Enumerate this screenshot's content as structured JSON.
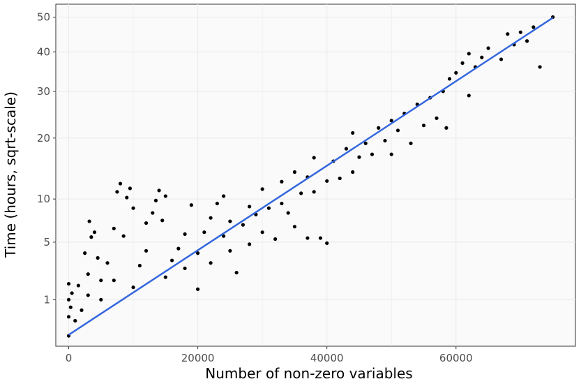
{
  "chart_data": {
    "type": "scatter",
    "title": "",
    "xlabel": "Number of non-zero variables",
    "ylabel": "Time (hours, sqrt-scale)",
    "x_scale": "linear",
    "y_scale": "sqrt",
    "xlim": [
      -2000,
      78500
    ],
    "ylim": [
      0,
      54
    ],
    "x_ticks": [
      {
        "value": 0,
        "label": "0"
      },
      {
        "value": 20000,
        "label": "20000"
      },
      {
        "value": 40000,
        "label": "40000"
      },
      {
        "value": 60000,
        "label": "60000"
      }
    ],
    "y_ticks": [
      {
        "value": 1,
        "label": "1"
      },
      {
        "value": 5,
        "label": "5"
      },
      {
        "value": 10,
        "label": "10"
      },
      {
        "value": 20,
        "label": "20"
      },
      {
        "value": 30,
        "label": "30"
      },
      {
        "value": 40,
        "label": "40"
      },
      {
        "value": 50,
        "label": "50"
      }
    ],
    "grid": true,
    "legend": "none",
    "colors": {
      "panel_background": "#fafafa",
      "grid": "#ebebeb",
      "points": "#000000",
      "trend_line": "#3366dd",
      "panel_border": "#333333"
    },
    "trend_line": {
      "x": [
        0,
        75000
      ],
      "y": [
        0.06,
        49.8
      ]
    },
    "series": [
      {
        "values": [
          [
            0,
            0.05
          ],
          [
            0,
            0.4
          ],
          [
            0,
            1.0
          ],
          [
            0,
            1.8
          ],
          [
            300,
            0.7
          ],
          [
            500,
            1.3
          ],
          [
            1000,
            0.3
          ],
          [
            1500,
            1.7
          ],
          [
            2000,
            0.6
          ],
          [
            3000,
            1.2
          ],
          [
            3000,
            2.4
          ],
          [
            2500,
            4.0
          ],
          [
            3500,
            5.5
          ],
          [
            4000,
            6.0
          ],
          [
            3200,
            7.2
          ],
          [
            4500,
            3.6
          ],
          [
            5000,
            1.0
          ],
          [
            5000,
            2.0
          ],
          [
            6000,
            3.2
          ],
          [
            7000,
            2.0
          ],
          [
            7000,
            6.4
          ],
          [
            7500,
            11.0
          ],
          [
            8000,
            12.2
          ],
          [
            9000,
            10.2
          ],
          [
            9500,
            11.5
          ],
          [
            10000,
            8.8
          ],
          [
            8500,
            5.6
          ],
          [
            10000,
            1.6
          ],
          [
            11000,
            3.0
          ],
          [
            12000,
            4.2
          ],
          [
            12000,
            7.0
          ],
          [
            13000,
            8.2
          ],
          [
            13500,
            9.8
          ],
          [
            14000,
            11.2
          ],
          [
            15000,
            10.4
          ],
          [
            14500,
            7.3
          ],
          [
            15000,
            2.2
          ],
          [
            16000,
            3.4
          ],
          [
            17000,
            4.4
          ],
          [
            18000,
            2.8
          ],
          [
            18000,
            5.8
          ],
          [
            19000,
            9.2
          ],
          [
            20000,
            4.0
          ],
          [
            20000,
            1.5
          ],
          [
            21000,
            6.0
          ],
          [
            22000,
            3.2
          ],
          [
            22000,
            7.6
          ],
          [
            23000,
            9.4
          ],
          [
            24000,
            5.6
          ],
          [
            24000,
            10.4
          ],
          [
            25000,
            4.2
          ],
          [
            25000,
            7.2
          ],
          [
            26000,
            2.5
          ],
          [
            27000,
            6.8
          ],
          [
            28000,
            9.0
          ],
          [
            28000,
            4.8
          ],
          [
            29000,
            8.0
          ],
          [
            30000,
            11.4
          ],
          [
            30000,
            6.0
          ],
          [
            31000,
            8.8
          ],
          [
            32000,
            5.3
          ],
          [
            33000,
            12.5
          ],
          [
            33000,
            9.4
          ],
          [
            34000,
            8.2
          ],
          [
            35000,
            14.0
          ],
          [
            35000,
            6.6
          ],
          [
            36000,
            10.8
          ],
          [
            37000,
            13.2
          ],
          [
            37000,
            5.4
          ],
          [
            38000,
            16.4
          ],
          [
            38000,
            11.0
          ],
          [
            39000,
            5.4
          ],
          [
            40000,
            12.6
          ],
          [
            40000,
            4.9
          ],
          [
            41000,
            15.8
          ],
          [
            42000,
            13.0
          ],
          [
            43000,
            18.0
          ],
          [
            44000,
            21.0
          ],
          [
            44000,
            14.0
          ],
          [
            45000,
            16.5
          ],
          [
            46000,
            19.0
          ],
          [
            47000,
            17.0
          ],
          [
            48000,
            22.0
          ],
          [
            49000,
            19.5
          ],
          [
            50000,
            23.5
          ],
          [
            50000,
            17.0
          ],
          [
            51000,
            21.5
          ],
          [
            52000,
            25.0
          ],
          [
            53000,
            19.0
          ],
          [
            54000,
            27.0
          ],
          [
            55000,
            22.5
          ],
          [
            56000,
            28.5
          ],
          [
            57000,
            24.0
          ],
          [
            58000,
            30.0
          ],
          [
            58500,
            22.0
          ],
          [
            59000,
            33.0
          ],
          [
            60000,
            34.5
          ],
          [
            61000,
            37.0
          ],
          [
            62000,
            39.5
          ],
          [
            62000,
            29.0
          ],
          [
            63000,
            36.0
          ],
          [
            64000,
            38.5
          ],
          [
            65000,
            41.0
          ],
          [
            67000,
            38.0
          ],
          [
            68000,
            45.0
          ],
          [
            69000,
            42.0
          ],
          [
            70000,
            45.5
          ],
          [
            71000,
            43.0
          ],
          [
            72000,
            47.0
          ],
          [
            73000,
            36.0
          ],
          [
            75000,
            50.0
          ]
        ]
      }
    ]
  }
}
